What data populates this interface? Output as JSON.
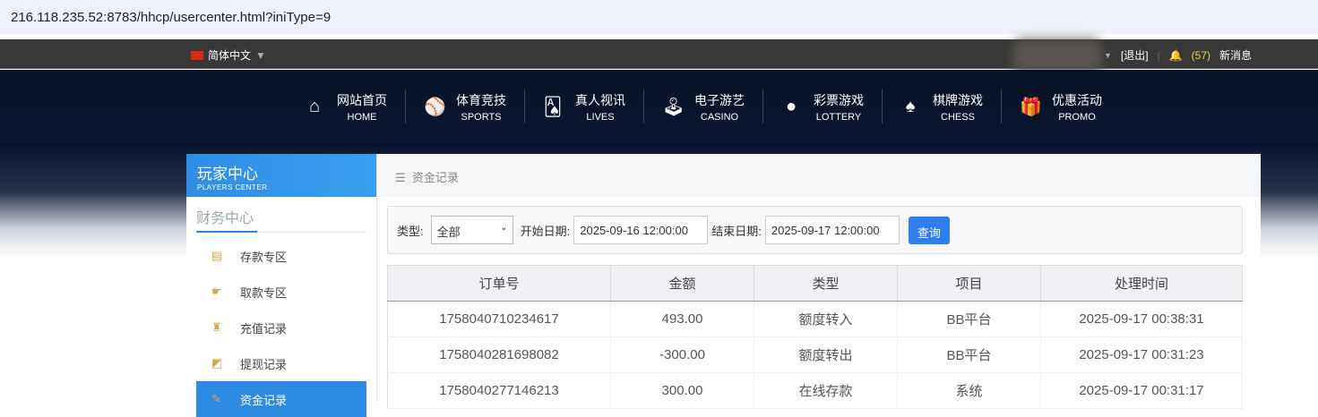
{
  "address": "216.118.235.52:8783/hhcp/usercenter.html?iniType=9",
  "topbar": {
    "language": "简体中文",
    "logout": "[退出]",
    "msg_count": "(57)",
    "msg_label": "新消息"
  },
  "nav": [
    {
      "icon": "home-icon",
      "glyph": "⌂",
      "cn": "网站首页",
      "en": "HOME"
    },
    {
      "icon": "ball-icon",
      "glyph": "⚾",
      "cn": "体育竞技",
      "en": "SPORTS"
    },
    {
      "icon": "cards-icon",
      "glyph": "🂡",
      "cn": "真人视讯",
      "en": "LIVES"
    },
    {
      "icon": "joystick-icon",
      "glyph": "🕹",
      "cn": "电子游艺",
      "en": "CASINO"
    },
    {
      "icon": "lottery-balls-icon",
      "glyph": "●",
      "cn": "彩票游戏",
      "en": "LOTTERY"
    },
    {
      "icon": "spade-icon",
      "glyph": "♠",
      "cn": "棋牌游戏",
      "en": "CHESS"
    },
    {
      "icon": "gift-icon",
      "glyph": "🎁",
      "cn": "优惠活动",
      "en": "PROMO"
    }
  ],
  "sidebar": {
    "title": "玩家中心",
    "subtitle": "PLAYERS CENTER",
    "section": "财务中心",
    "items": [
      {
        "label": "存款专区",
        "icon": "card-icon",
        "glyph": "▤"
      },
      {
        "label": "取款专区",
        "icon": "hand-money-icon",
        "glyph": "☛"
      },
      {
        "label": "充值记录",
        "icon": "money-bag-icon",
        "glyph": "♜"
      },
      {
        "label": "提现记录",
        "icon": "wallet-icon",
        "glyph": "◩"
      },
      {
        "label": "资金记录",
        "icon": "record-icon",
        "glyph": "✎"
      }
    ]
  },
  "main": {
    "title": "资金记录",
    "filter": {
      "type_label": "类型:",
      "type_value": "全部",
      "start_label": "开始日期:",
      "start_value": "2025-09-16 12:00:00",
      "end_label": "结束日期:",
      "end_value": "2025-09-17 12:00:00",
      "query": "查询"
    },
    "columns": [
      "订单号",
      "金额",
      "类型",
      "项目",
      "处理时间"
    ],
    "rows": [
      [
        "1758040710234617",
        "493.00",
        "额度转入",
        "BB平台",
        "2025-09-17 00:38:31"
      ],
      [
        "1758040281698082",
        "-300.00",
        "额度转出",
        "BB平台",
        "2025-09-17 00:31:23"
      ],
      [
        "1758040277146213",
        "300.00",
        "在线存款",
        "系统",
        "2025-09-17 00:31:17"
      ]
    ]
  }
}
